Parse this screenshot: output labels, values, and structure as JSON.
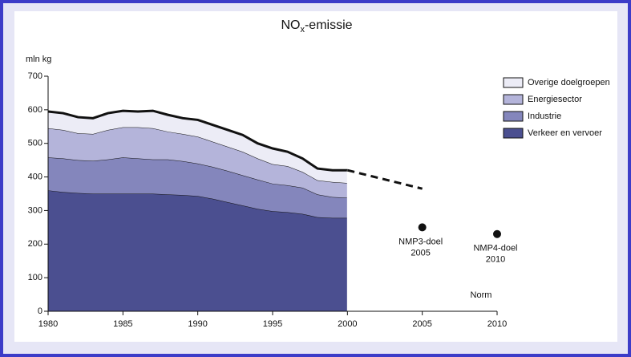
{
  "chart_data": {
    "type": "stacked-area",
    "title_parts": [
      "NO",
      "x",
      "-emissie"
    ],
    "ylabel": "mln kg",
    "x": [
      1980,
      1981,
      1982,
      1983,
      1984,
      1985,
      1986,
      1987,
      1988,
      1989,
      1990,
      1991,
      1992,
      1993,
      1994,
      1995,
      1996,
      1997,
      1998,
      1999,
      2000
    ],
    "series": [
      {
        "name": "Verkeer en vervoer",
        "color": "#4b4f90",
        "values": [
          360,
          355,
          352,
          350,
          350,
          350,
          350,
          350,
          348,
          346,
          343,
          335,
          325,
          315,
          305,
          298,
          295,
          290,
          280,
          278,
          278
        ]
      },
      {
        "name": "Industrie",
        "color": "#8486bc",
        "values": [
          98,
          100,
          98,
          98,
          102,
          108,
          105,
          102,
          104,
          101,
          97,
          95,
          93,
          90,
          87,
          82,
          80,
          78,
          68,
          62,
          60
        ]
      },
      {
        "name": "Energiesector",
        "color": "#b4b4da",
        "values": [
          87,
          85,
          80,
          80,
          88,
          90,
          93,
          93,
          83,
          81,
          80,
          75,
          72,
          70,
          63,
          58,
          57,
          47,
          42,
          45,
          44
        ]
      },
      {
        "name": "Overige doelgroepen",
        "color": "#ececf6",
        "values": [
          50,
          50,
          48,
          47,
          50,
          49,
          47,
          52,
          50,
          47,
          50,
          50,
          50,
          50,
          45,
          47,
          43,
          40,
          35,
          35,
          38
        ]
      }
    ],
    "projection": {
      "x": [
        2000,
        2005
      ],
      "values": [
        420,
        365
      ]
    },
    "targets": [
      {
        "x": 2005,
        "value": 250,
        "label": [
          "NMP3-doel",
          "2005"
        ]
      },
      {
        "x": 2010,
        "value": 230,
        "label": [
          "NMP4-doel",
          "2010"
        ]
      }
    ],
    "note": "Norm",
    "xlim": [
      1980,
      2010
    ],
    "xticks": [
      1980,
      1985,
      1990,
      1995,
      2000,
      2005,
      2010
    ],
    "ylim": [
      0,
      700
    ],
    "yticks": [
      0,
      100,
      200,
      300,
      400,
      500,
      600,
      700
    ],
    "legend": "top-right"
  }
}
